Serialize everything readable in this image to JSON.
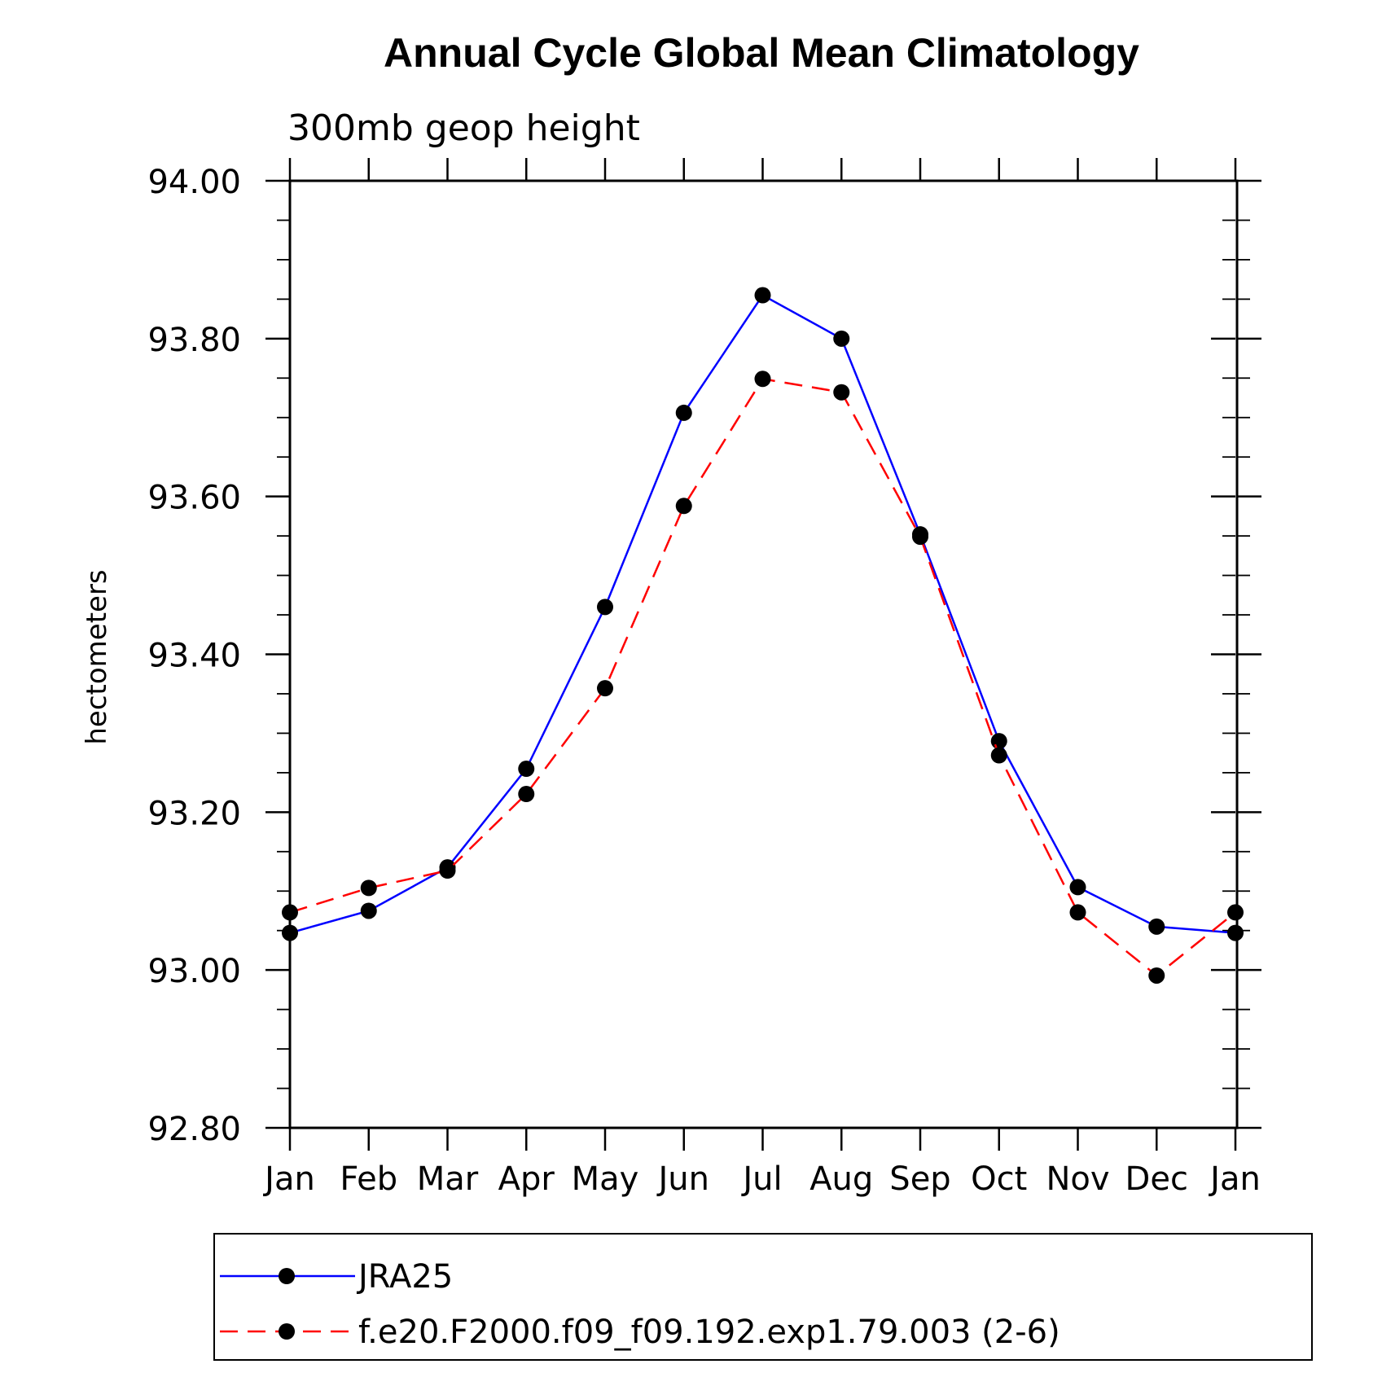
{
  "chart_data": {
    "type": "line",
    "title": "Annual Cycle Global Mean Climatology",
    "subtitle": "300mb geop height",
    "ylabel": "hectometers",
    "xlabel": "",
    "categories": [
      "Jan",
      "Feb",
      "Mar",
      "Apr",
      "May",
      "Jun",
      "Jul",
      "Aug",
      "Sep",
      "Oct",
      "Nov",
      "Dec",
      "Jan"
    ],
    "ylim": [
      92.8,
      94.0
    ],
    "yticks": [
      "92.80",
      "93.00",
      "93.20",
      "93.40",
      "93.60",
      "93.80",
      "94.00"
    ],
    "grid": false,
    "legend_placement": "bottom",
    "series": [
      {
        "name": "JRA25",
        "color": "#0000ff",
        "dash": "solid",
        "marker": "filled-circle",
        "values": [
          93.047,
          93.075,
          93.13,
          93.255,
          93.46,
          93.706,
          93.855,
          93.8,
          93.552,
          93.29,
          93.105,
          93.055,
          93.047
        ]
      },
      {
        "name": "f.e20.F2000.f09_f09.192.exp1.79.003 (2-6)",
        "color": "#ff0000",
        "dash": "dashed",
        "marker": "filled-circle",
        "values": [
          93.073,
          93.104,
          93.126,
          93.223,
          93.357,
          93.588,
          93.749,
          93.732,
          93.549,
          93.272,
          93.073,
          92.993,
          93.073
        ]
      }
    ]
  }
}
